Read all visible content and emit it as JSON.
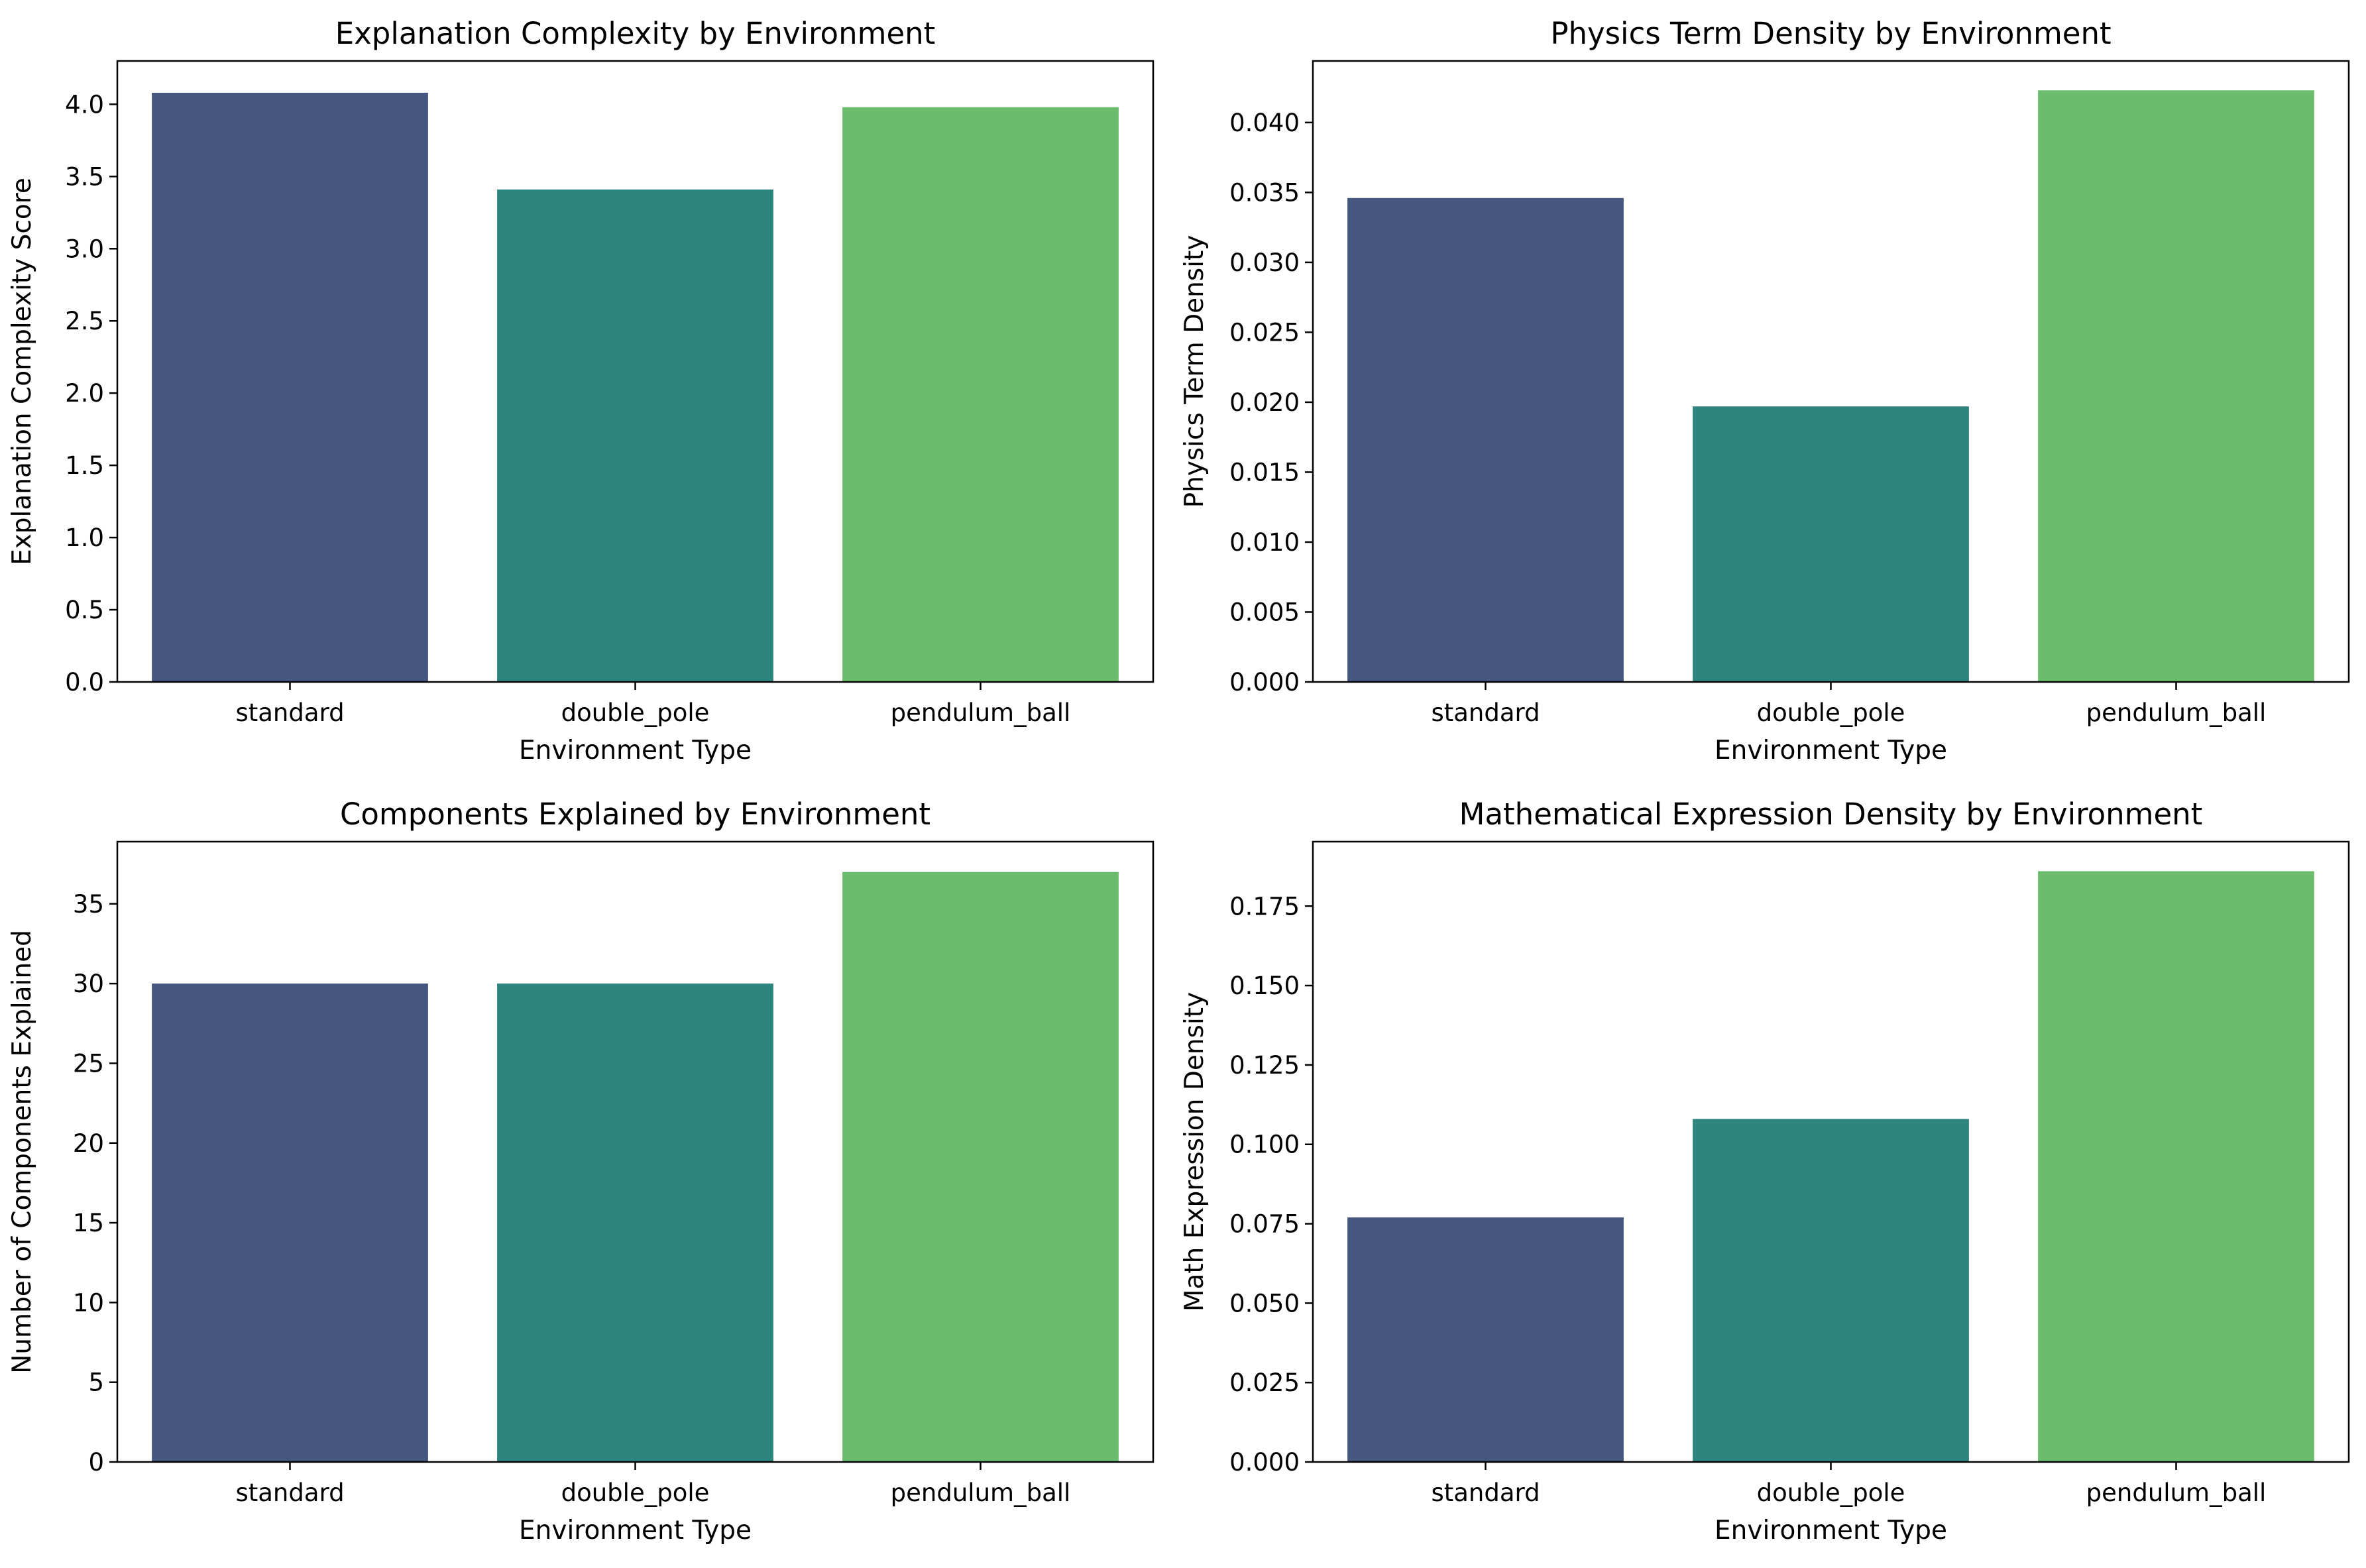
{
  "colors": {
    "bar_palette": [
      "#46577f",
      "#2e847e",
      "#6bbd6d"
    ],
    "axis": "#000000",
    "background": "#ffffff"
  },
  "chart_data": [
    {
      "type": "bar",
      "title": "Explanation Complexity by Environment",
      "xlabel": "Environment Type",
      "ylabel": "Explanation Complexity Score",
      "categories": [
        "standard",
        "double_pole",
        "pendulum_ball"
      ],
      "values": [
        4.08,
        3.41,
        3.98
      ],
      "ylim": [
        0,
        4.3
      ],
      "yticks": [
        0,
        0.5,
        1,
        1.5,
        2,
        2.5,
        3,
        3.5,
        4
      ],
      "ytick_labels": [
        "0.0",
        "0.5",
        "1.0",
        "1.5",
        "2.0",
        "2.5",
        "3.0",
        "3.5",
        "4.0"
      ],
      "grid": false
    },
    {
      "type": "bar",
      "title": "Physics Term Density by Environment",
      "xlabel": "Environment Type",
      "ylabel": "Physics Term Density",
      "categories": [
        "standard",
        "double_pole",
        "pendulum_ball"
      ],
      "values": [
        0.0346,
        0.0197,
        0.0423
      ],
      "ylim": [
        0,
        0.0444
      ],
      "yticks": [
        0,
        0.005,
        0.01,
        0.015,
        0.02,
        0.025,
        0.03,
        0.035,
        0.04
      ],
      "ytick_labels": [
        "0.000",
        "0.005",
        "0.010",
        "0.015",
        "0.020",
        "0.025",
        "0.030",
        "0.035",
        "0.040"
      ],
      "grid": false
    },
    {
      "type": "bar",
      "title": "Components Explained by Environment",
      "xlabel": "Environment Type",
      "ylabel": "Number of Components Explained",
      "categories": [
        "standard",
        "double_pole",
        "pendulum_ball"
      ],
      "values": [
        30,
        30,
        37
      ],
      "ylim": [
        0,
        38.9
      ],
      "yticks": [
        0,
        5,
        10,
        15,
        20,
        25,
        30,
        35
      ],
      "ytick_labels": [
        "0",
        "5",
        "10",
        "15",
        "20",
        "25",
        "30",
        "35"
      ],
      "grid": false
    },
    {
      "type": "bar",
      "title": "Mathematical Expression Density by Environment",
      "xlabel": "Environment Type",
      "ylabel": "Math Expression Density",
      "categories": [
        "standard",
        "double_pole",
        "pendulum_ball"
      ],
      "values": [
        0.077,
        0.108,
        0.186
      ],
      "ylim": [
        0,
        0.1953
      ],
      "yticks": [
        0,
        0.025,
        0.05,
        0.075,
        0.1,
        0.125,
        0.15,
        0.175
      ],
      "ytick_labels": [
        "0.000",
        "0.025",
        "0.050",
        "0.075",
        "0.100",
        "0.125",
        "0.150",
        "0.175"
      ],
      "grid": false
    }
  ]
}
